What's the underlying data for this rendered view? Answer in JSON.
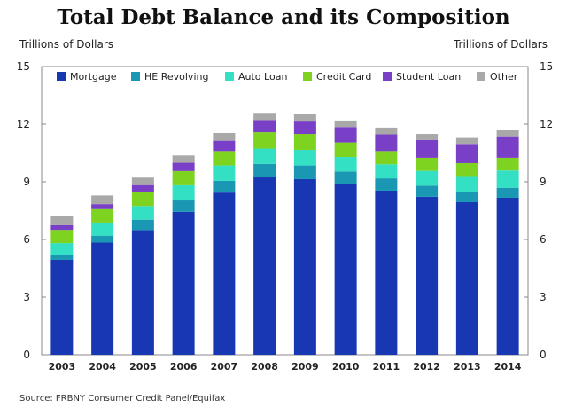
{
  "chart_data": {
    "type": "bar",
    "stacked": true,
    "title": "Total Debt Balance and its Composition",
    "ylabel_left": "Trillions of Dollars",
    "ylabel_right": "Trillions of Dollars",
    "source": "Source: FRBNY Consumer Credit Panel/Equifax",
    "ylim": [
      0,
      15
    ],
    "yticks": [
      0,
      3,
      6,
      9,
      12,
      15
    ],
    "categories": [
      "2003",
      "2004",
      "2005",
      "2006",
      "2007",
      "2008",
      "2009",
      "2010",
      "2011",
      "2012",
      "2013",
      "2014"
    ],
    "legend_position": "top",
    "series": [
      {
        "name": "Mortgage",
        "color": "#1737b3",
        "values": [
          4.94,
          5.84,
          6.49,
          7.44,
          8.44,
          9.23,
          9.14,
          8.88,
          8.54,
          8.22,
          7.94,
          8.17
        ]
      },
      {
        "name": "HE Revolving",
        "color": "#1a98b3",
        "values": [
          0.24,
          0.36,
          0.54,
          0.59,
          0.61,
          0.7,
          0.71,
          0.66,
          0.64,
          0.58,
          0.55,
          0.52
        ]
      },
      {
        "name": "Auto Loan",
        "color": "#33e0c4",
        "values": [
          0.63,
          0.68,
          0.71,
          0.79,
          0.8,
          0.8,
          0.81,
          0.75,
          0.73,
          0.77,
          0.81,
          0.9
        ]
      },
      {
        "name": "Credit Card",
        "color": "#7ed321",
        "values": [
          0.69,
          0.7,
          0.73,
          0.74,
          0.75,
          0.85,
          0.83,
          0.76,
          0.69,
          0.68,
          0.67,
          0.66
        ]
      },
      {
        "name": "Student Loan",
        "color": "#7a3fc7",
        "values": [
          0.24,
          0.26,
          0.36,
          0.43,
          0.54,
          0.63,
          0.69,
          0.8,
          0.87,
          0.93,
          1.0,
          1.12
        ]
      },
      {
        "name": "Other",
        "color": "#a9a9a9",
        "values": [
          0.5,
          0.45,
          0.39,
          0.38,
          0.4,
          0.38,
          0.35,
          0.34,
          0.35,
          0.31,
          0.31,
          0.33
        ]
      }
    ]
  }
}
